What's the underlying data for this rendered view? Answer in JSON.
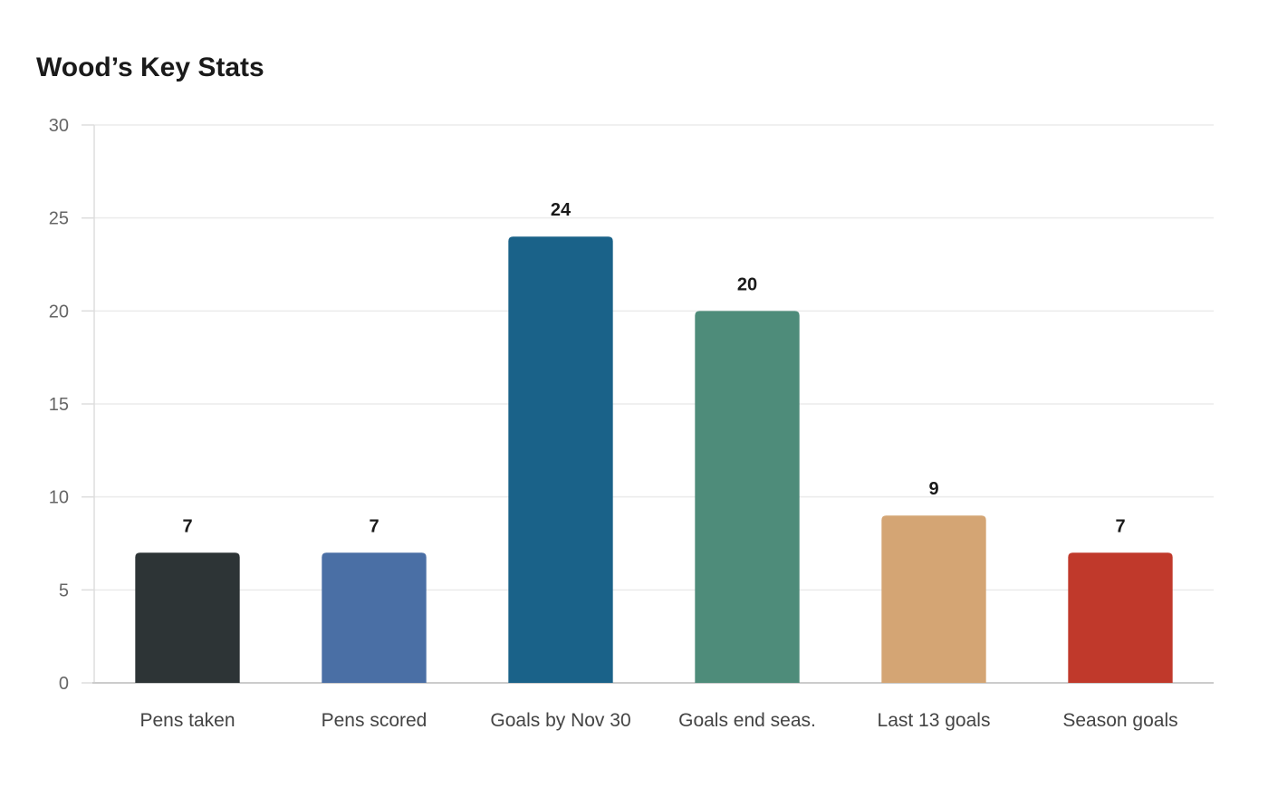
{
  "chart_data": {
    "type": "bar",
    "title": "Wood’s Key Stats",
    "xlabel": "",
    "ylabel": "",
    "categories": [
      "Pens taken",
      "Pens scored",
      "Goals by Nov 30",
      "Goals end seas.",
      "Last 13 goals",
      "Season goals"
    ],
    "values": [
      7,
      7,
      24,
      20,
      9,
      7
    ],
    "colors": [
      "#2d3436",
      "#4a6fa5",
      "#1a6289",
      "#4e8c7a",
      "#d4a574",
      "#c0392b"
    ],
    "ylim": [
      0,
      30
    ],
    "yticks": [
      0,
      5,
      10,
      15,
      20,
      25,
      30
    ],
    "grid": true,
    "legend": "none",
    "data_labels": true
  }
}
